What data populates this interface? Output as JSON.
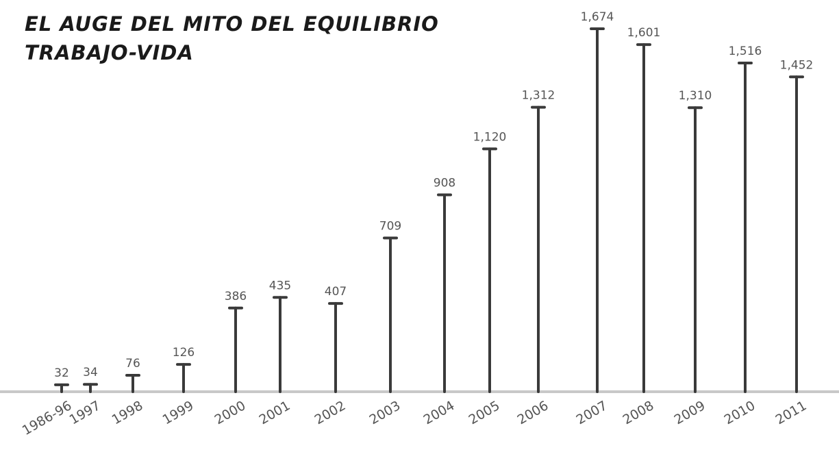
{
  "chart_data": {
    "type": "bar",
    "title": "EL AUGE DEL MITO DEL EQUILIBRIO TRABAJO-VIDA",
    "categories": [
      "1986-96",
      "1997",
      "1998",
      "1999",
      "2000",
      "2001",
      "2002",
      "2003",
      "2004",
      "2005",
      "2006",
      "2007",
      "2008",
      "2009",
      "2010",
      "2011"
    ],
    "values": [
      32,
      34,
      76,
      126,
      386,
      435,
      407,
      709,
      908,
      1120,
      1312,
      1674,
      1601,
      1310,
      1516,
      1452
    ],
    "value_labels": [
      "32",
      "34",
      "76",
      "126",
      "386",
      "435",
      "407",
      "709",
      "908",
      "1,120",
      "1,312",
      "1,674",
      "1,601",
      "1,310",
      "1,516",
      "1,452"
    ],
    "ylim": [
      0,
      1674
    ],
    "grid": false,
    "legend": "none",
    "colors": {
      "bar": "#3a3a3a",
      "baseline": "#c8c8c8",
      "labels": "#555555",
      "title": "#1a1a1a"
    }
  }
}
